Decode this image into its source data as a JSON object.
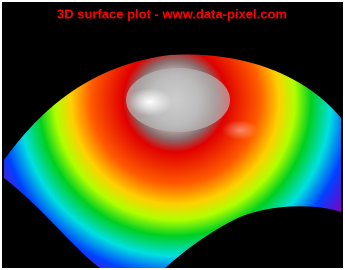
{
  "chart_data": {
    "type": "surface",
    "title": "3D surface plot - www.data-pixel.com"
  }
}
